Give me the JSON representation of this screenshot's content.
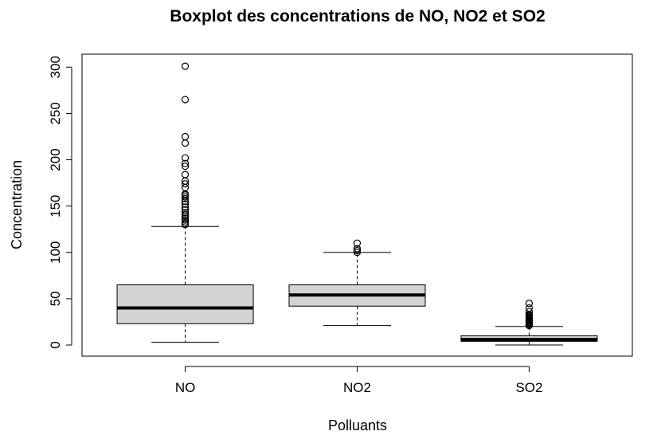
{
  "chart_data": {
    "type": "boxplot",
    "title": "Boxplot des concentrations de NO, NO2 et SO2",
    "xlabel": "Polluants",
    "ylabel": "Concentration",
    "categories": [
      "NO",
      "NO2",
      "SO2"
    ],
    "ylim": [
      -12,
      314
    ],
    "yticks": [
      0,
      50,
      100,
      150,
      200,
      250,
      300
    ],
    "grid": false,
    "box_fill": "#d3d3d3",
    "boxes": [
      {
        "name": "NO",
        "whisker_low": 3,
        "q1": 23,
        "median": 40,
        "q3": 65,
        "whisker_high": 128,
        "outliers": [
          130,
          131,
          133,
          135,
          137,
          139,
          141,
          143,
          146,
          149,
          152,
          155,
          158,
          160,
          162,
          163,
          170,
          174,
          177,
          184,
          193,
          196,
          202,
          218,
          225,
          265,
          301
        ]
      },
      {
        "name": "NO2",
        "whisker_low": 21,
        "q1": 42,
        "median": 54,
        "q3": 65,
        "whisker_high": 100,
        "outliers": [
          100,
          102,
          104,
          110
        ]
      },
      {
        "name": "SO2",
        "whisker_low": 0,
        "q1": 4,
        "median": 6,
        "q3": 10,
        "whisker_high": 20,
        "outliers": [
          21,
          22,
          23,
          24,
          25,
          26,
          27,
          28,
          29,
          30,
          31,
          32,
          33,
          36,
          40,
          45
        ]
      }
    ]
  }
}
